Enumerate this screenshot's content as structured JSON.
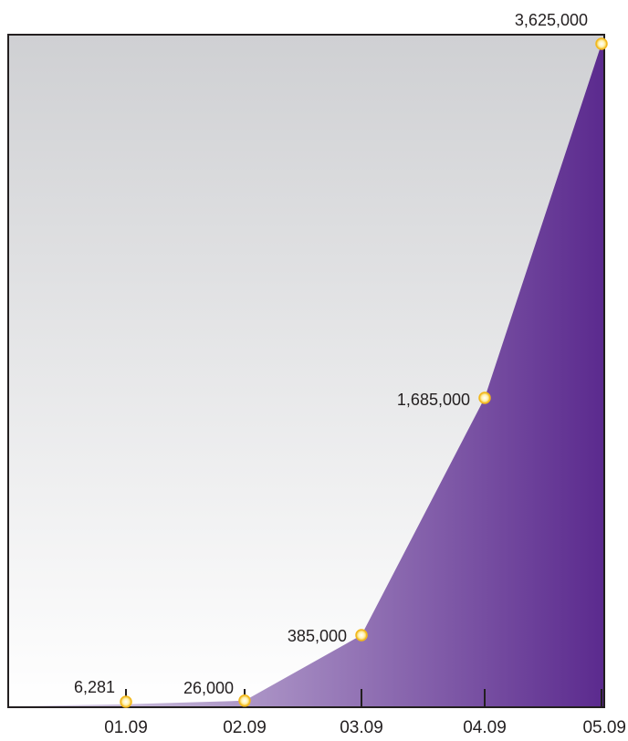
{
  "chart_data": {
    "type": "area",
    "title": "",
    "xlabel": "",
    "ylabel": "",
    "categories": [
      "01.09",
      "02.09",
      "03.09",
      "04.09",
      "05.09"
    ],
    "values": [
      6281,
      26000,
      385000,
      1685000,
      3625000
    ],
    "data_labels": [
      "6,281",
      "26,000",
      "385,000",
      "1,685,000",
      "3,625,000"
    ],
    "ylim": [
      0,
      3625000
    ],
    "grid": false,
    "legend": "none",
    "colors": {
      "background_top": "#cfd0d3",
      "background_bottom": "#ffffff",
      "area_light": "#e2dcec",
      "area_dark": "#5b2a8e",
      "marker_fill": "#fff3b0",
      "marker_stroke": "#f2b81c",
      "axis": "#231f20"
    }
  }
}
